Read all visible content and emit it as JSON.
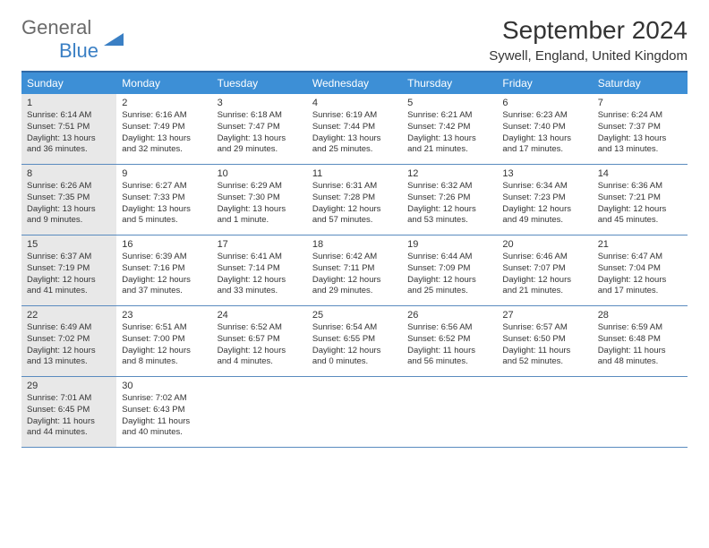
{
  "branding": {
    "word1": "General",
    "word2": "Blue",
    "logo_color": "#3a7fc4"
  },
  "title": "September 2024",
  "location": "Sywell, England, United Kingdom",
  "colors": {
    "header_bg": "#3d8fd6",
    "header_border": "#2f6aa8",
    "row_border": "#5a8bbf",
    "shade_bg": "#e8e8e8"
  },
  "day_names": [
    "Sunday",
    "Monday",
    "Tuesday",
    "Wednesday",
    "Thursday",
    "Friday",
    "Saturday"
  ],
  "shaded_days": [
    1,
    8,
    15,
    22,
    29
  ],
  "days": [
    {
      "n": 1,
      "sunrise": "6:14 AM",
      "sunset": "7:51 PM",
      "daylight": "13 hours and 36 minutes."
    },
    {
      "n": 2,
      "sunrise": "6:16 AM",
      "sunset": "7:49 PM",
      "daylight": "13 hours and 32 minutes."
    },
    {
      "n": 3,
      "sunrise": "6:18 AM",
      "sunset": "7:47 PM",
      "daylight": "13 hours and 29 minutes."
    },
    {
      "n": 4,
      "sunrise": "6:19 AM",
      "sunset": "7:44 PM",
      "daylight": "13 hours and 25 minutes."
    },
    {
      "n": 5,
      "sunrise": "6:21 AM",
      "sunset": "7:42 PM",
      "daylight": "13 hours and 21 minutes."
    },
    {
      "n": 6,
      "sunrise": "6:23 AM",
      "sunset": "7:40 PM",
      "daylight": "13 hours and 17 minutes."
    },
    {
      "n": 7,
      "sunrise": "6:24 AM",
      "sunset": "7:37 PM",
      "daylight": "13 hours and 13 minutes."
    },
    {
      "n": 8,
      "sunrise": "6:26 AM",
      "sunset": "7:35 PM",
      "daylight": "13 hours and 9 minutes."
    },
    {
      "n": 9,
      "sunrise": "6:27 AM",
      "sunset": "7:33 PM",
      "daylight": "13 hours and 5 minutes."
    },
    {
      "n": 10,
      "sunrise": "6:29 AM",
      "sunset": "7:30 PM",
      "daylight": "13 hours and 1 minute."
    },
    {
      "n": 11,
      "sunrise": "6:31 AM",
      "sunset": "7:28 PM",
      "daylight": "12 hours and 57 minutes."
    },
    {
      "n": 12,
      "sunrise": "6:32 AM",
      "sunset": "7:26 PM",
      "daylight": "12 hours and 53 minutes."
    },
    {
      "n": 13,
      "sunrise": "6:34 AM",
      "sunset": "7:23 PM",
      "daylight": "12 hours and 49 minutes."
    },
    {
      "n": 14,
      "sunrise": "6:36 AM",
      "sunset": "7:21 PM",
      "daylight": "12 hours and 45 minutes."
    },
    {
      "n": 15,
      "sunrise": "6:37 AM",
      "sunset": "7:19 PM",
      "daylight": "12 hours and 41 minutes."
    },
    {
      "n": 16,
      "sunrise": "6:39 AM",
      "sunset": "7:16 PM",
      "daylight": "12 hours and 37 minutes."
    },
    {
      "n": 17,
      "sunrise": "6:41 AM",
      "sunset": "7:14 PM",
      "daylight": "12 hours and 33 minutes."
    },
    {
      "n": 18,
      "sunrise": "6:42 AM",
      "sunset": "7:11 PM",
      "daylight": "12 hours and 29 minutes."
    },
    {
      "n": 19,
      "sunrise": "6:44 AM",
      "sunset": "7:09 PM",
      "daylight": "12 hours and 25 minutes."
    },
    {
      "n": 20,
      "sunrise": "6:46 AM",
      "sunset": "7:07 PM",
      "daylight": "12 hours and 21 minutes."
    },
    {
      "n": 21,
      "sunrise": "6:47 AM",
      "sunset": "7:04 PM",
      "daylight": "12 hours and 17 minutes."
    },
    {
      "n": 22,
      "sunrise": "6:49 AM",
      "sunset": "7:02 PM",
      "daylight": "12 hours and 13 minutes."
    },
    {
      "n": 23,
      "sunrise": "6:51 AM",
      "sunset": "7:00 PM",
      "daylight": "12 hours and 8 minutes."
    },
    {
      "n": 24,
      "sunrise": "6:52 AM",
      "sunset": "6:57 PM",
      "daylight": "12 hours and 4 minutes."
    },
    {
      "n": 25,
      "sunrise": "6:54 AM",
      "sunset": "6:55 PM",
      "daylight": "12 hours and 0 minutes."
    },
    {
      "n": 26,
      "sunrise": "6:56 AM",
      "sunset": "6:52 PM",
      "daylight": "11 hours and 56 minutes."
    },
    {
      "n": 27,
      "sunrise": "6:57 AM",
      "sunset": "6:50 PM",
      "daylight": "11 hours and 52 minutes."
    },
    {
      "n": 28,
      "sunrise": "6:59 AM",
      "sunset": "6:48 PM",
      "daylight": "11 hours and 48 minutes."
    },
    {
      "n": 29,
      "sunrise": "7:01 AM",
      "sunset": "6:45 PM",
      "daylight": "11 hours and 44 minutes."
    },
    {
      "n": 30,
      "sunrise": "7:02 AM",
      "sunset": "6:43 PM",
      "daylight": "11 hours and 40 minutes."
    }
  ],
  "labels": {
    "sunrise": "Sunrise:",
    "sunset": "Sunset:",
    "daylight": "Daylight:"
  }
}
